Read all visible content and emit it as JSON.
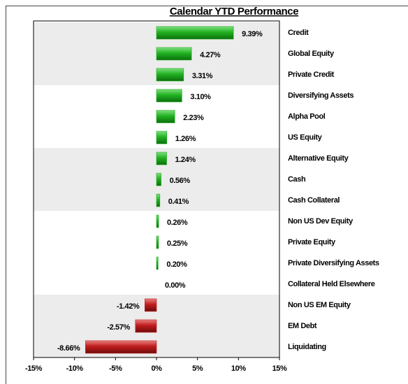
{
  "chart_data": {
    "type": "barh",
    "title": "Calendar YTD Performance",
    "categories": [
      "Credit",
      "Global Equity",
      "Private Credit",
      "Diversifying Assets",
      "Alpha Pool",
      "US Equity",
      "Alternative Equity",
      "Cash",
      "Cash Collateral",
      "Non US Dev Equity",
      "Private Equity",
      "Private Diversifying Assets",
      "Collateral Held Elsewhere",
      "Non US EM Equity",
      "EM Debt",
      "Liquidating"
    ],
    "values": [
      9.39,
      4.27,
      3.31,
      3.1,
      2.23,
      1.26,
      1.24,
      0.56,
      0.41,
      0.26,
      0.25,
      0.2,
      0.0,
      -1.42,
      -2.57,
      -8.66
    ],
    "value_labels": [
      "9.39%",
      "4.27%",
      "3.31%",
      "3.10%",
      "2.23%",
      "1.26%",
      "1.24%",
      "0.56%",
      "0.41%",
      "0.26%",
      "0.25%",
      "0.20%",
      "0.00%",
      "-1.42%",
      "-2.57%",
      "-8.66%"
    ],
    "positive_color": "#1faa1f",
    "negative_color": "#c01c1c",
    "xlim": [
      -15,
      15
    ],
    "xticks": [
      {
        "value": -15,
        "label": "-15%"
      },
      {
        "value": -10,
        "label": "-10%"
      },
      {
        "value": -5,
        "label": "-5%"
      },
      {
        "value": 0,
        "label": "0%"
      },
      {
        "value": 5,
        "label": "5%"
      },
      {
        "value": 10,
        "label": "10%"
      },
      {
        "value": 15,
        "label": "15%"
      }
    ]
  }
}
